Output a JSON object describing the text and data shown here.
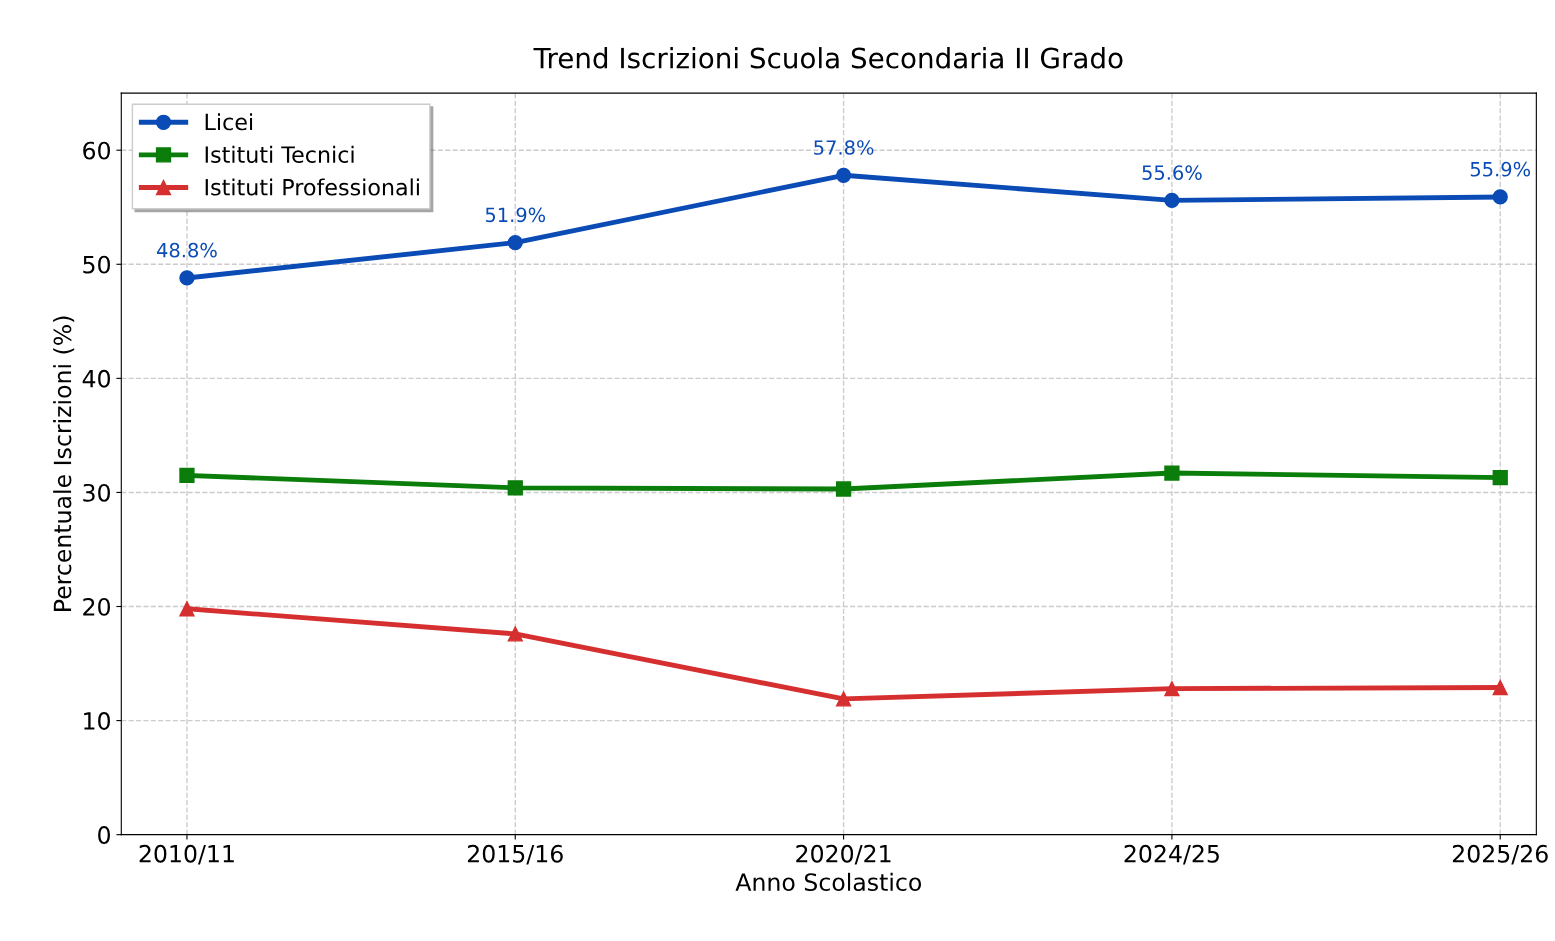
{
  "chart_data": {
    "type": "line",
    "title": "Trend Iscrizioni Scuola Secondaria II Grado",
    "xlabel": "Anno Scolastico",
    "ylabel": "Percentuale Iscrizioni (%)",
    "categories": [
      "2010/11",
      "2015/16",
      "2020/21",
      "2024/25",
      "2025/26"
    ],
    "series": [
      {
        "name": "Licei",
        "color": "#0a4bb5",
        "marker": "circle",
        "values": [
          48.8,
          51.9,
          57.8,
          55.6,
          55.9
        ],
        "value_labels": [
          "48.8%",
          "51.9%",
          "57.8%",
          "55.6%",
          "55.9%"
        ]
      },
      {
        "name": "Istituti Tecnici",
        "color": "#0a7d0a",
        "marker": "square",
        "values": [
          31.5,
          30.4,
          30.3,
          31.7,
          31.3
        ]
      },
      {
        "name": "Istituti Professionali",
        "color": "#d62f2f",
        "marker": "triangle",
        "values": [
          19.8,
          17.6,
          11.9,
          12.8,
          12.9
        ]
      }
    ],
    "ylim": [
      0,
      65
    ],
    "yticks": [
      0,
      10,
      20,
      30,
      40,
      50,
      60
    ],
    "grid": true,
    "legend": "top left",
    "line_style": "solid"
  }
}
